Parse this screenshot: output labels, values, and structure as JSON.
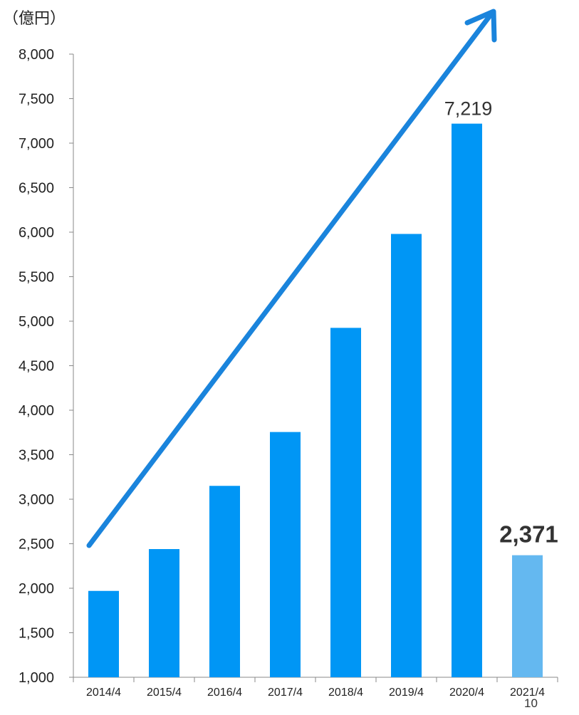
{
  "chart_data": {
    "type": "bar",
    "unit_label": "（億円）",
    "categories": [
      "2014/4",
      "2015/4",
      "2016/4",
      "2017/4",
      "2018/4",
      "2019/4",
      "2020/4",
      "2021/4"
    ],
    "values": [
      1970,
      2440,
      3150,
      3755,
      4925,
      5980,
      7219,
      2371
    ],
    "ylim": [
      1000,
      8000
    ],
    "yticks": [
      "1,000",
      "1,500",
      "2,000",
      "2,500",
      "3,000",
      "3,500",
      "4,000",
      "4,500",
      "5,000",
      "5,500",
      "6,000",
      "6,500",
      "7,000",
      "7,500",
      "8,000"
    ],
    "data_labels": [
      {
        "category": "2020/4",
        "text": "7,219",
        "bold": false
      },
      {
        "category": "2021/4",
        "text": "2,371",
        "bold": true
      }
    ],
    "colors": {
      "bar": "#0096f5",
      "highlight_bar": "#64b8f0",
      "arrow": "#1a84dc",
      "axis": "#888888"
    },
    "grid": false,
    "legend": "none",
    "trend_arrow": true
  },
  "page_number": "10"
}
